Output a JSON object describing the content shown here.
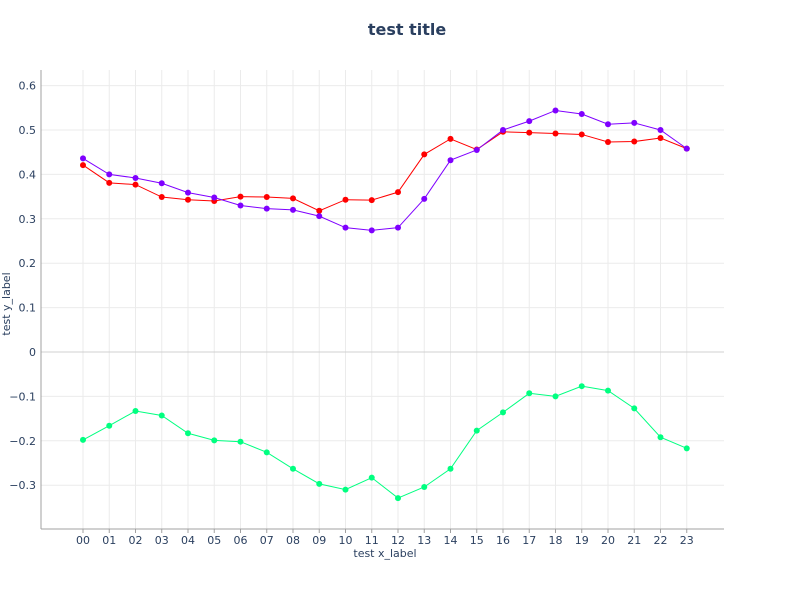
{
  "chart_data": {
    "type": "line",
    "title": "test title",
    "xlabel": "test x_label",
    "ylabel": "test y_label",
    "categories": [
      "00",
      "01",
      "02",
      "03",
      "04",
      "05",
      "06",
      "07",
      "08",
      "09",
      "10",
      "11",
      "12",
      "13",
      "14",
      "15",
      "16",
      "17",
      "18",
      "19",
      "20",
      "21",
      "22",
      "23"
    ],
    "ylim": [
      -0.4,
      0.6
    ],
    "yticks": [
      0.6,
      0.5,
      0.4,
      0.3,
      0.2,
      0.1,
      0,
      -0.1,
      -0.2,
      -0.3
    ],
    "ytick_labels": [
      "0.6",
      "0.5",
      "0.4",
      "0.3",
      "0.2",
      "0.1",
      "0",
      "−0.1",
      "−0.2",
      "−0.3"
    ],
    "grid": true,
    "series": [
      {
        "color": "#ff0000",
        "values": [
          0.421,
          0.381,
          0.377,
          0.349,
          0.343,
          0.34,
          0.35,
          0.349,
          0.346,
          0.318,
          0.343,
          0.342,
          0.36,
          0.445,
          0.48,
          0.456,
          0.496,
          0.494,
          0.492,
          0.49,
          0.473,
          0.474,
          0.482,
          0.458
        ]
      },
      {
        "color": "#7f00ff",
        "values": [
          0.436,
          0.4,
          0.392,
          0.38,
          0.359,
          0.348,
          0.33,
          0.323,
          0.32,
          0.306,
          0.28,
          0.274,
          0.28,
          0.345,
          0.432,
          0.455,
          0.5,
          0.52,
          0.544,
          0.536,
          0.513,
          0.516,
          0.5,
          0.458
        ]
      },
      {
        "color": "#00ff80",
        "values": [
          -0.198,
          -0.166,
          -0.133,
          -0.143,
          -0.183,
          -0.199,
          -0.202,
          -0.226,
          -0.263,
          -0.297,
          -0.31,
          -0.283,
          -0.329,
          -0.304,
          -0.263,
          -0.177,
          -0.136,
          -0.093,
          -0.1,
          -0.077,
          -0.087,
          -0.127,
          -0.192,
          -0.217
        ]
      }
    ]
  }
}
